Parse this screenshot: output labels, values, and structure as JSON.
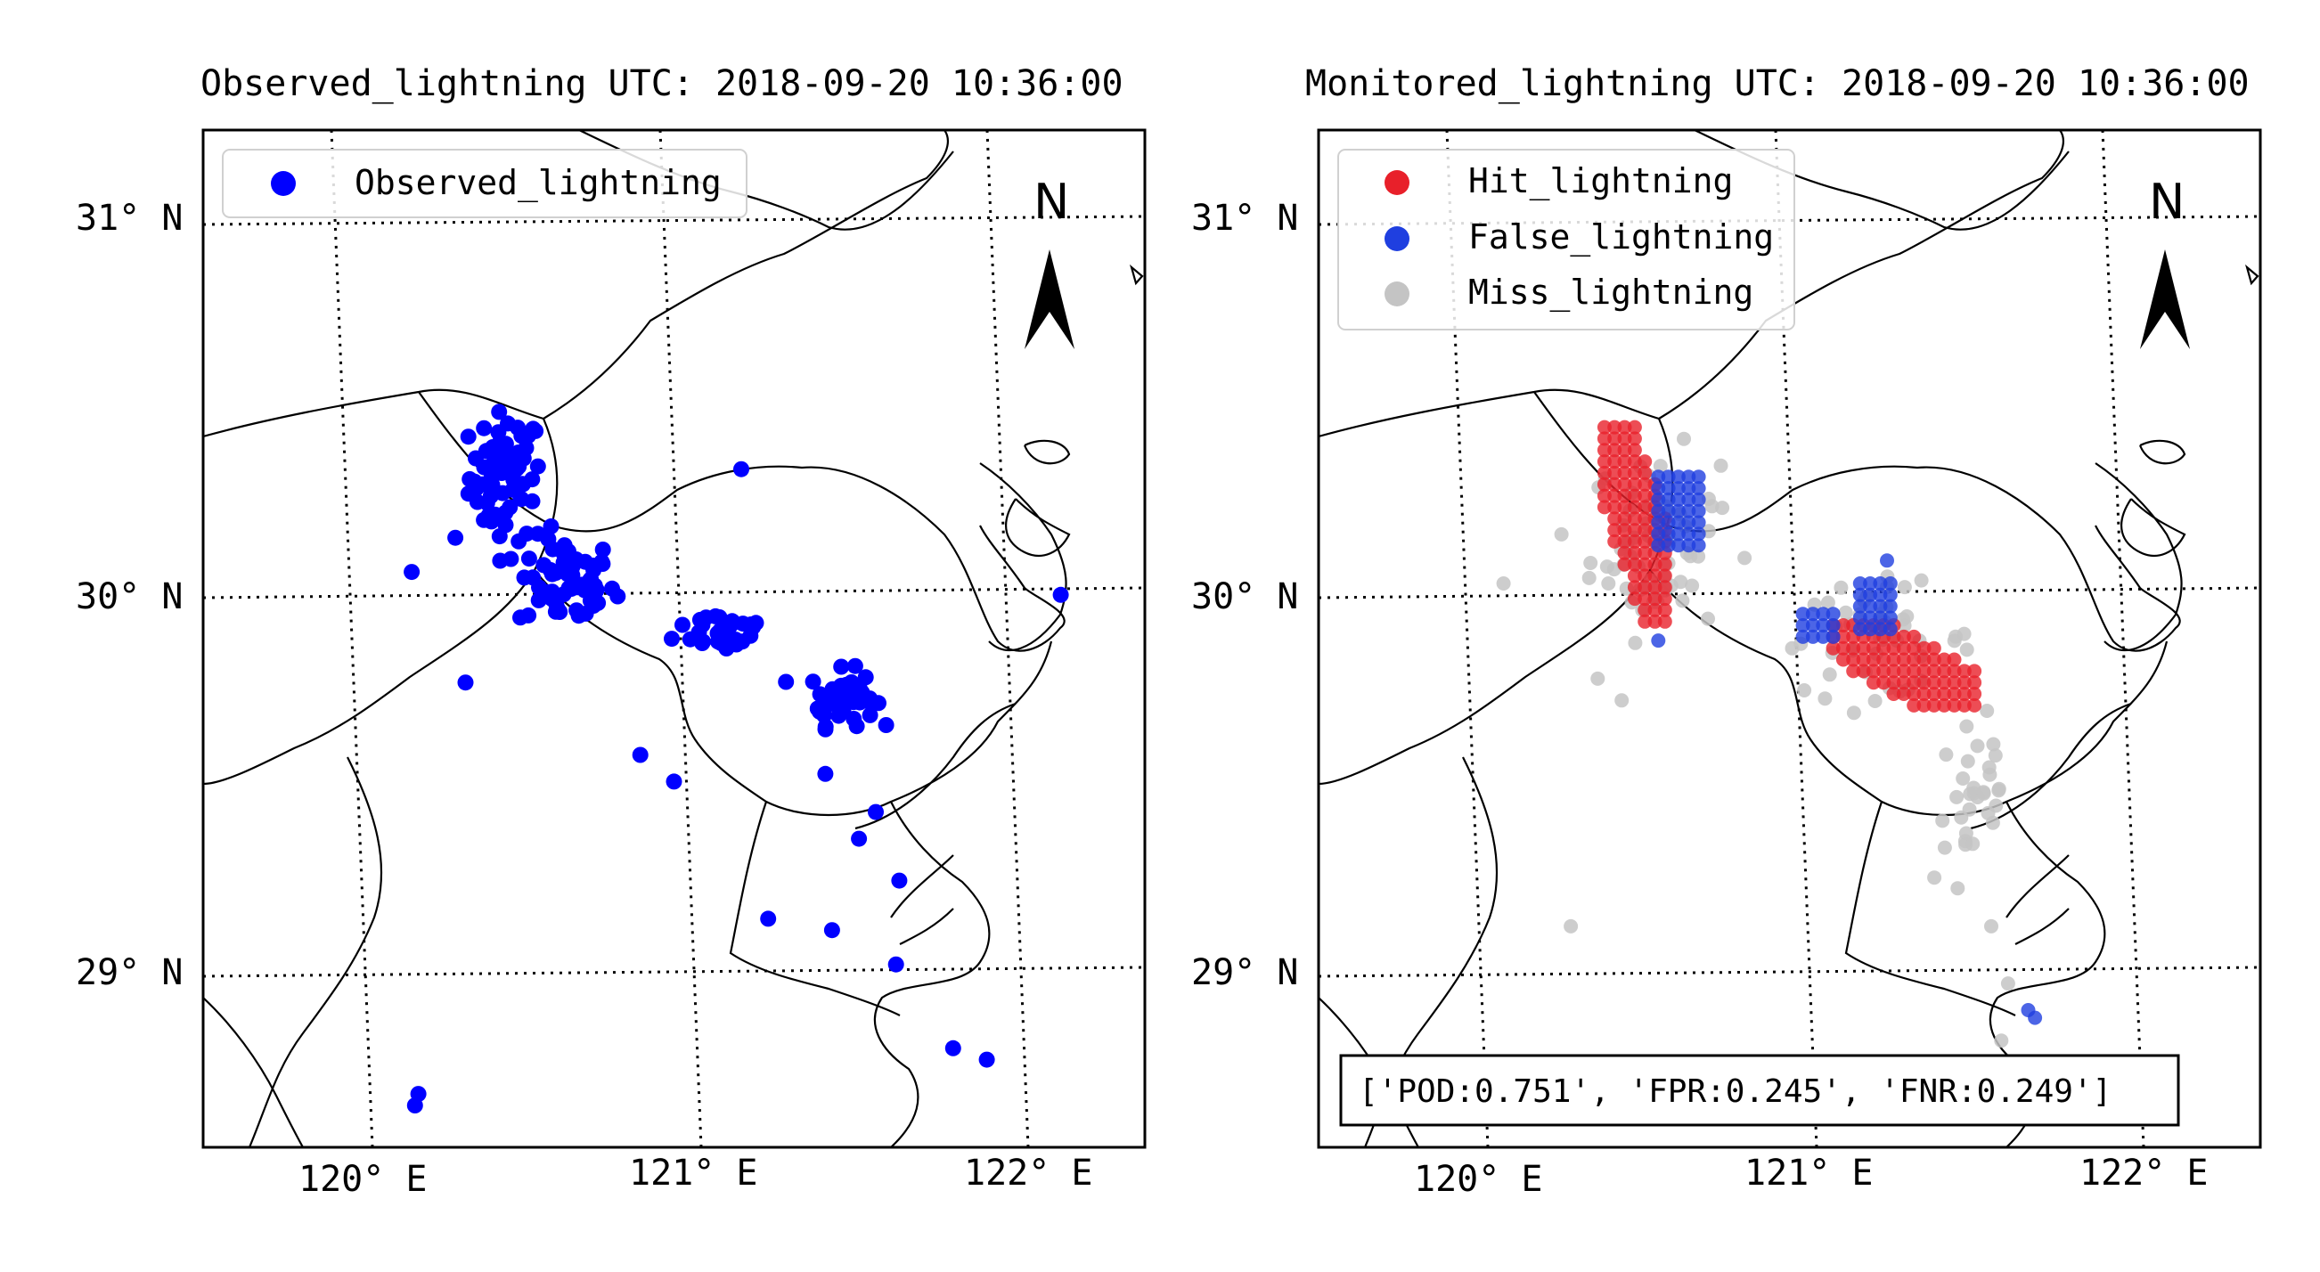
{
  "chart_data": [
    {
      "type": "scatter",
      "title": "Observed_lightning UTC: 2018-09-20 10:36:00",
      "xlim": [
        119.55,
        122.35
      ],
      "ylim": [
        28.52,
        31.19
      ],
      "x_ticks": [
        120,
        121,
        122
      ],
      "y_ticks": [
        29,
        30,
        31
      ],
      "x_tick_labels": [
        "120° E",
        "121° E",
        "122° E"
      ],
      "y_tick_labels": [
        "29° N",
        "30° N",
        "31° N"
      ],
      "legend": [
        {
          "name": "Observed_lightning",
          "color": "#0000ff"
        }
      ],
      "north_label": "N",
      "series": [
        {
          "name": "Observed_lightning",
          "color": "#0000ff",
          "clusters": [
            {
              "lon": 120.45,
              "lat": 30.28,
              "spread_lon": 0.09,
              "spread_lat": 0.14,
              "count": 70
            },
            {
              "lon": 120.63,
              "lat": 30.0,
              "spread_lon": 0.12,
              "spread_lat": 0.1,
              "count": 60
            },
            {
              "lon": 121.1,
              "lat": 29.88,
              "spread_lon": 0.12,
              "spread_lat": 0.05,
              "count": 32
            },
            {
              "lon": 121.45,
              "lat": 29.7,
              "spread_lon": 0.08,
              "spread_lat": 0.06,
              "count": 50
            }
          ],
          "points": [
            {
              "lon": 120.19,
              "lat": 28.66
            },
            {
              "lon": 120.18,
              "lat": 28.63
            },
            {
              "lon": 120.33,
              "lat": 29.74
            },
            {
              "lon": 120.17,
              "lat": 30.03
            },
            {
              "lon": 121.15,
              "lat": 30.3
            },
            {
              "lon": 121.23,
              "lat": 29.12
            },
            {
              "lon": 121.42,
              "lat": 29.09
            },
            {
              "lon": 121.61,
              "lat": 29.0
            },
            {
              "lon": 121.62,
              "lat": 29.22
            },
            {
              "lon": 121.78,
              "lat": 28.78
            },
            {
              "lon": 121.88,
              "lat": 28.75
            },
            {
              "lon": 122.1,
              "lat": 29.97
            },
            {
              "lon": 121.55,
              "lat": 29.4
            },
            {
              "lon": 121.5,
              "lat": 29.33
            },
            {
              "lon": 120.85,
              "lat": 29.55
            },
            {
              "lon": 120.3,
              "lat": 30.12
            },
            {
              "lon": 120.95,
              "lat": 29.48
            },
            {
              "lon": 121.4,
              "lat": 29.5
            }
          ]
        }
      ]
    },
    {
      "type": "scatter",
      "title": "Monitored_lightning UTC: 2018-09-20 10:36:00",
      "xlim": [
        119.55,
        122.35
      ],
      "ylim": [
        28.52,
        31.19
      ],
      "x_ticks": [
        120,
        121,
        122
      ],
      "y_ticks": [
        29,
        30,
        31
      ],
      "x_tick_labels": [
        "120° E",
        "121° E",
        "122° E"
      ],
      "y_tick_labels": [
        "29° N",
        "30° N",
        "31° N"
      ],
      "legend": [
        {
          "name": "Hit_lightning",
          "color": "#e8202a"
        },
        {
          "name": "False_lightning",
          "color": "#1f3fe0"
        },
        {
          "name": "Miss_lightning",
          "color": "#c4c4c4"
        }
      ],
      "north_label": "N",
      "annotation": "['POD:0.751', 'FPR:0.245', 'FNR:0.249']",
      "series": [
        {
          "name": "Miss_lightning",
          "color": "#c4c4c4",
          "clusters": [
            {
              "lon": 120.55,
              "lat": 30.1,
              "spread_lon": 0.16,
              "spread_lat": 0.2,
              "count": 70
            },
            {
              "lon": 121.2,
              "lat": 29.85,
              "spread_lon": 0.25,
              "spread_lat": 0.12,
              "count": 45
            },
            {
              "lon": 121.5,
              "lat": 29.45,
              "spread_lon": 0.1,
              "spread_lat": 0.2,
              "count": 30
            }
          ],
          "points": [
            {
              "lon": 121.6,
              "lat": 28.95
            },
            {
              "lon": 121.55,
              "lat": 29.1
            },
            {
              "lon": 121.58,
              "lat": 28.8
            },
            {
              "lon": 121.45,
              "lat": 29.2
            },
            {
              "lon": 120.1,
              "lat": 30.0
            },
            {
              "lon": 120.38,
              "lat": 29.75
            },
            {
              "lon": 120.3,
              "lat": 29.1
            }
          ]
        },
        {
          "name": "Hit_lightning",
          "color": "#e8202a",
          "grids": [
            {
              "lon0": 120.4,
              "lon1": 120.6,
              "lat0": 29.9,
              "lat1": 30.42,
              "step": 0.03
            },
            {
              "lon0": 121.08,
              "lon1": 121.5,
              "lat0": 29.68,
              "lat1": 29.9,
              "step": 0.03
            }
          ]
        },
        {
          "name": "False_lightning",
          "color": "#1f3fe0",
          "grids": [
            {
              "lon0": 120.56,
              "lon1": 120.68,
              "lat0": 30.1,
              "lat1": 30.28,
              "step": 0.03
            },
            {
              "lon0": 120.99,
              "lon1": 121.1,
              "lat0": 29.86,
              "lat1": 29.94,
              "step": 0.03
            },
            {
              "lon0": 121.16,
              "lon1": 121.26,
              "lat0": 29.88,
              "lat1": 30.0,
              "step": 0.03
            }
          ],
          "points": [
            {
              "lon": 121.66,
              "lat": 28.88
            },
            {
              "lon": 121.68,
              "lat": 28.86
            },
            {
              "lon": 120.56,
              "lat": 29.85
            },
            {
              "lon": 121.24,
              "lat": 30.06
            }
          ]
        }
      ]
    }
  ]
}
